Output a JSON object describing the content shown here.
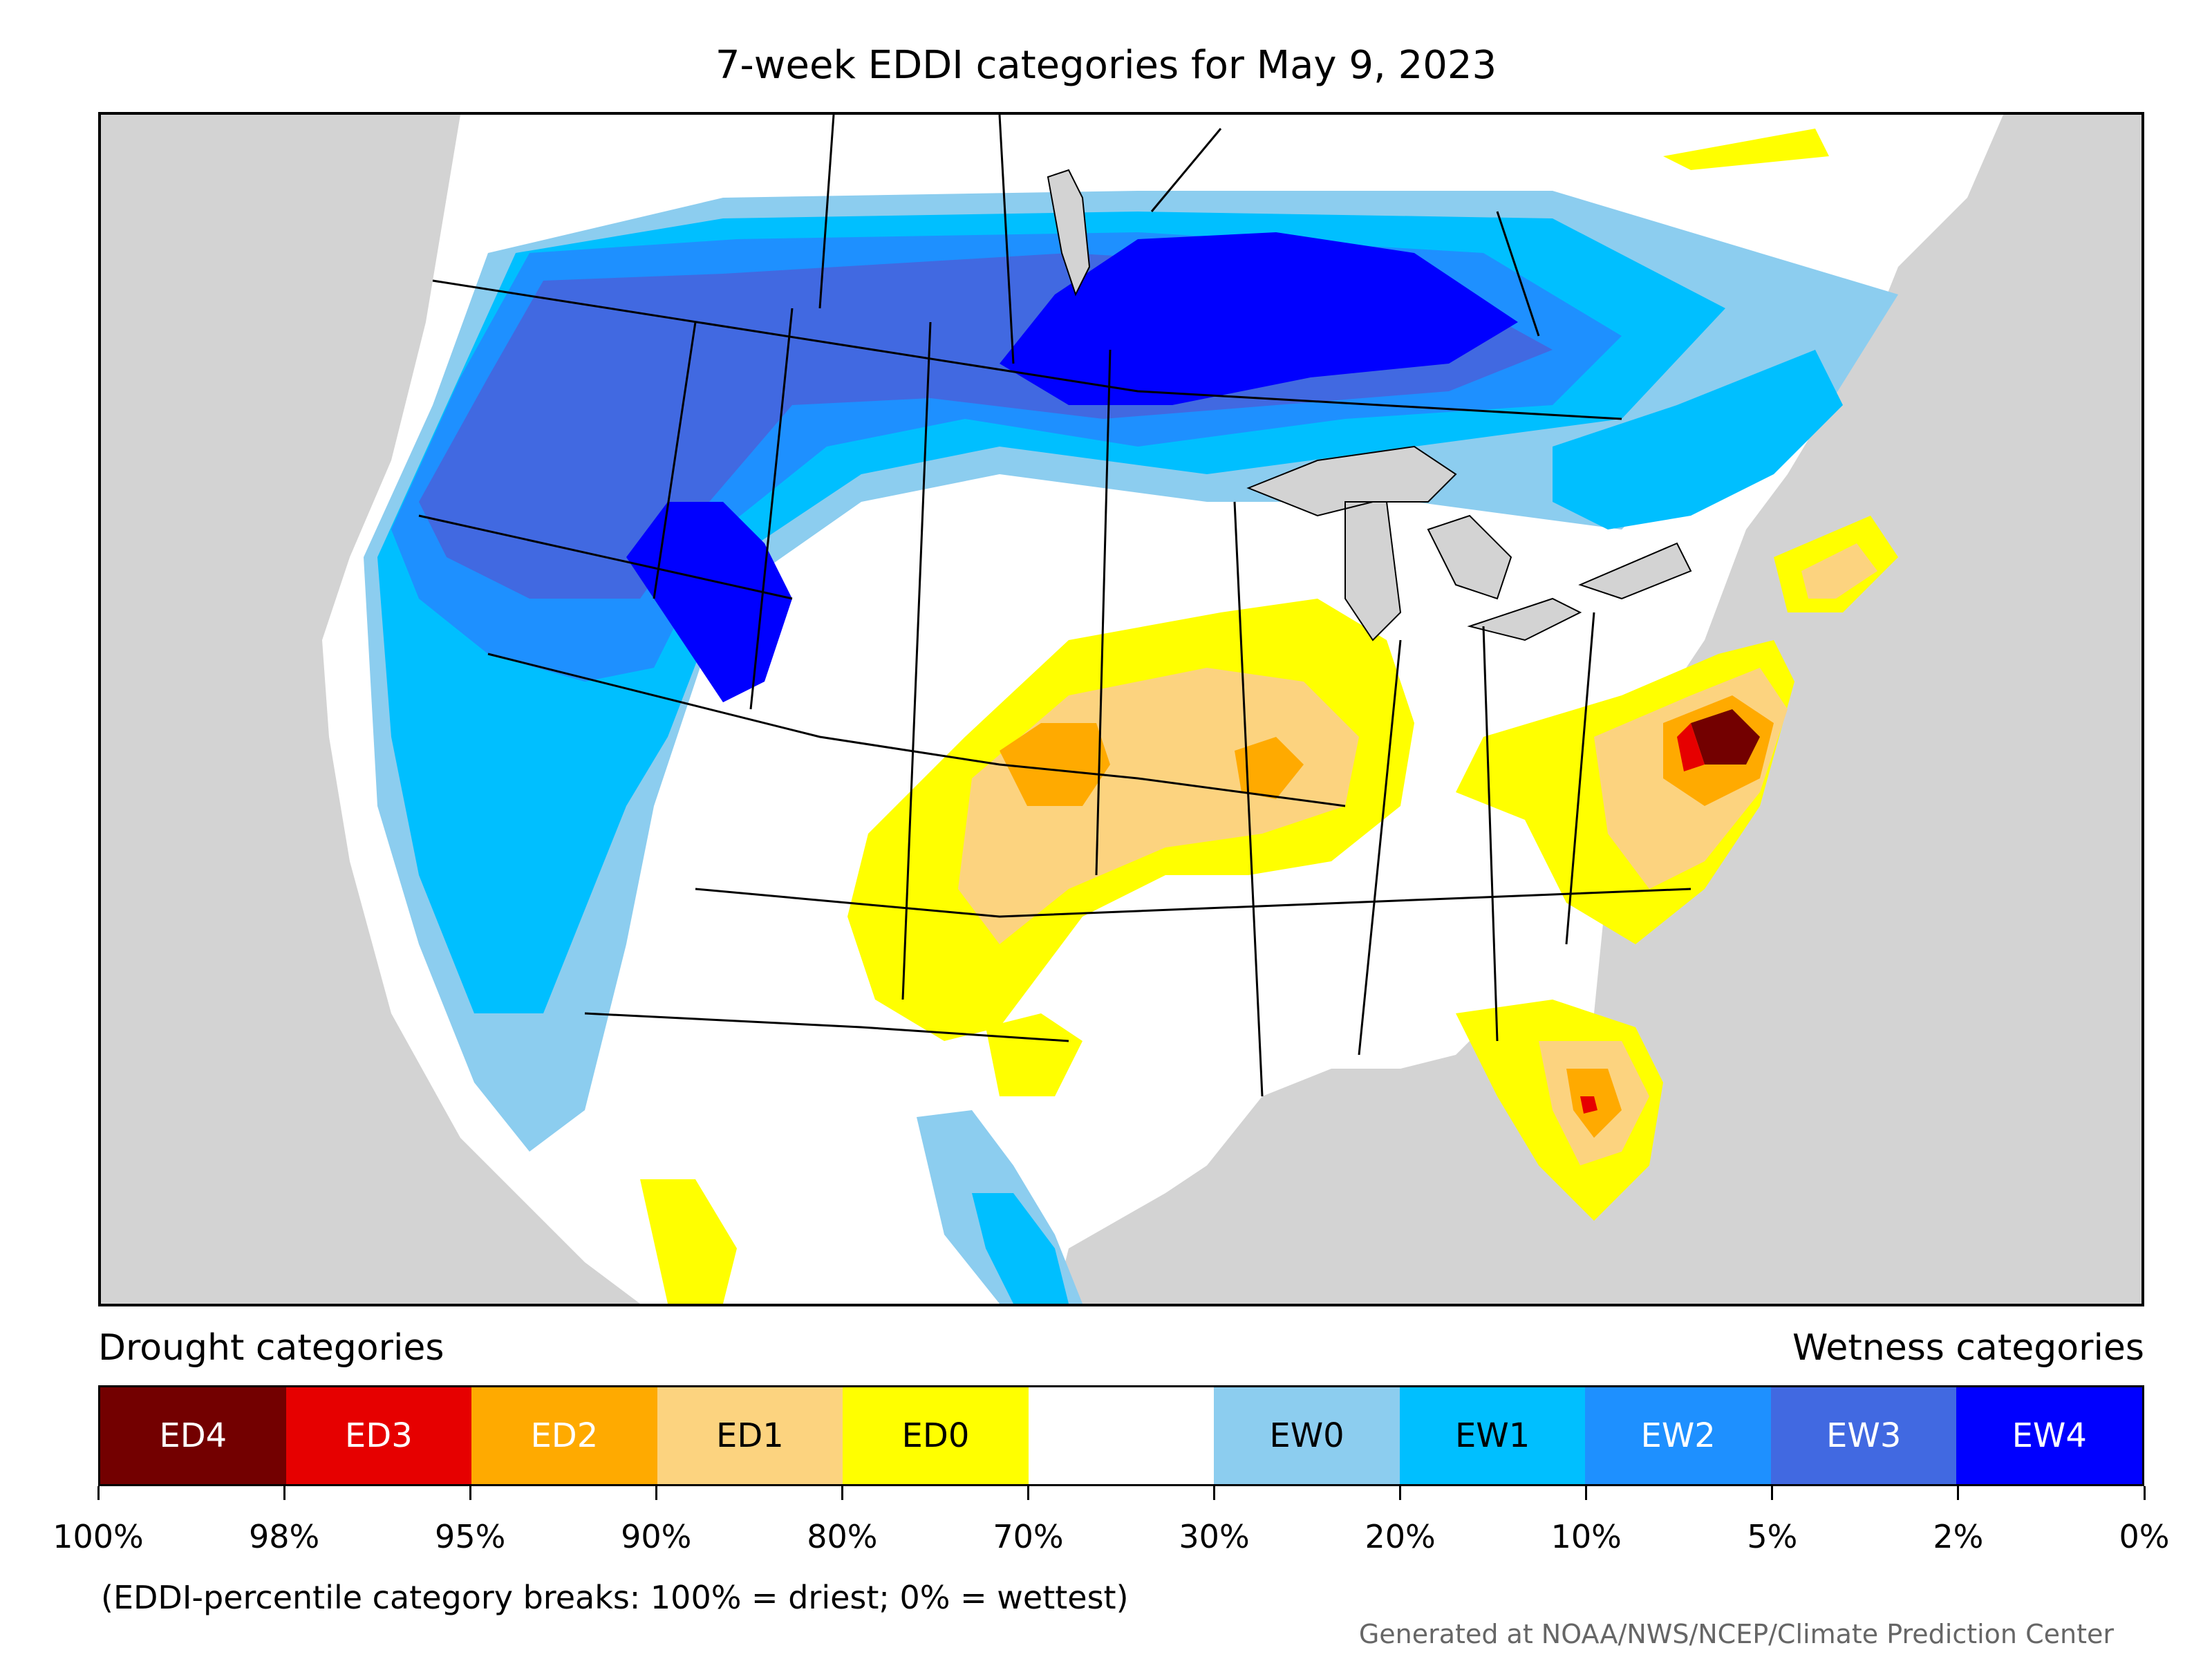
{
  "title": "7-week EDDI categories for May 9, 2023",
  "legend": {
    "drought_title": "Drought categories",
    "wet_title": "Wetness categories",
    "categories": [
      {
        "label": "ED4",
        "color": "#730000",
        "text_color": "#ffffff"
      },
      {
        "label": "ED3",
        "color": "#e60000",
        "text_color": "#ffffff"
      },
      {
        "label": "ED2",
        "color": "#ffaa00",
        "text_color": "#ffffff"
      },
      {
        "label": "ED1",
        "color": "#fcd37f",
        "text_color": "#000000"
      },
      {
        "label": "ED0",
        "color": "#ffff00",
        "text_color": "#000000"
      },
      {
        "label": "",
        "color": "#ffffff",
        "text_color": "#000000"
      },
      {
        "label": "EW0",
        "color": "#8ccdef",
        "text_color": "#000000"
      },
      {
        "label": "EW1",
        "color": "#00bfff",
        "text_color": "#000000"
      },
      {
        "label": "EW2",
        "color": "#1e90ff",
        "text_color": "#ffffff"
      },
      {
        "label": "EW3",
        "color": "#4169e1",
        "text_color": "#ffffff"
      },
      {
        "label": "EW4",
        "color": "#0000ff",
        "text_color": "#ffffff"
      }
    ],
    "ticks": [
      "100%",
      "98%",
      "95%",
      "90%",
      "80%",
      "70%",
      "30%",
      "20%",
      "10%",
      "5%",
      "2%",
      "0%"
    ]
  },
  "footnote": "(EDDI-percentile category breaks: 100% = driest; 0% = wettest)",
  "credit": "Generated at NOAA/NWS/NCEP/Climate Prediction Center",
  "map_colors": {
    "ocean": "#d3d3d3",
    "land": "#ffffff",
    "border": "#000000"
  }
}
